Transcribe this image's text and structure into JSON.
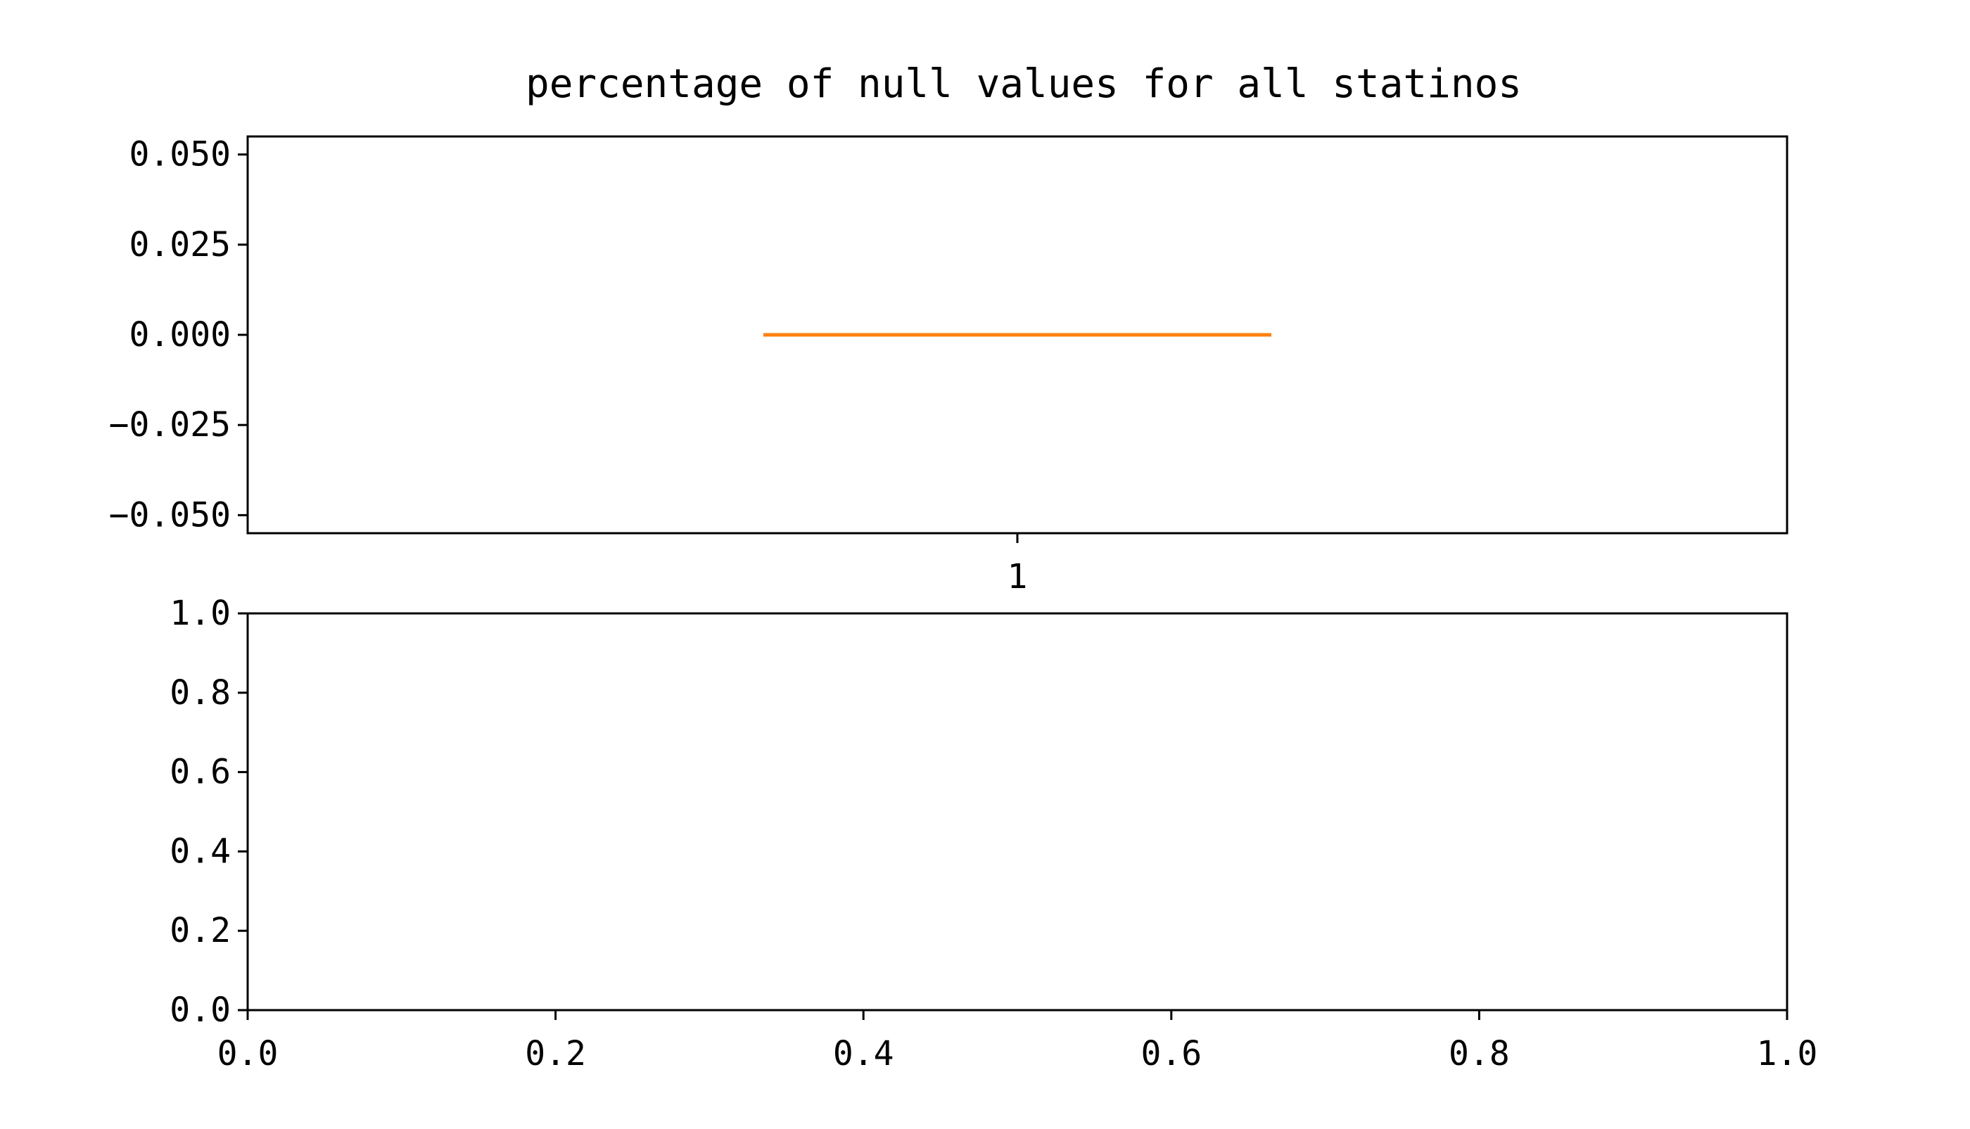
{
  "chart_data": [
    {
      "type": "box",
      "title": "percentage of null values for all statinos",
      "xlabel": "",
      "ylabel": "",
      "x_ticks": [
        "1"
      ],
      "y_ticks": [
        "0.050",
        "0.025",
        "0.000",
        "−0.025",
        "−0.050"
      ],
      "y_tick_values": [
        0.05,
        0.025,
        0.0,
        -0.025,
        -0.05
      ],
      "ylim": [
        -0.055,
        0.055
      ],
      "xlim": [
        0.5,
        1.5
      ],
      "grid": false,
      "boxes": [
        {
          "label": "1",
          "position": 1,
          "min": 0.0,
          "q1": 0.0,
          "median": 0.0,
          "q3": 0.0,
          "max": 0.0,
          "median_color": "#ff7f0e"
        }
      ]
    },
    {
      "type": "scatter",
      "title": "",
      "xlabel": "",
      "ylabel": "",
      "x_ticks": [
        "0.0",
        "0.2",
        "0.4",
        "0.6",
        "0.8",
        "1.0"
      ],
      "x_tick_values": [
        0.0,
        0.2,
        0.4,
        0.6,
        0.8,
        1.0
      ],
      "y_ticks": [
        "1.0",
        "0.8",
        "0.6",
        "0.4",
        "0.2",
        "0.0"
      ],
      "y_tick_values": [
        1.0,
        0.8,
        0.6,
        0.4,
        0.2,
        0.0
      ],
      "xlim": [
        0.0,
        1.0
      ],
      "ylim": [
        0.0,
        1.0
      ],
      "grid": false,
      "series": []
    }
  ]
}
